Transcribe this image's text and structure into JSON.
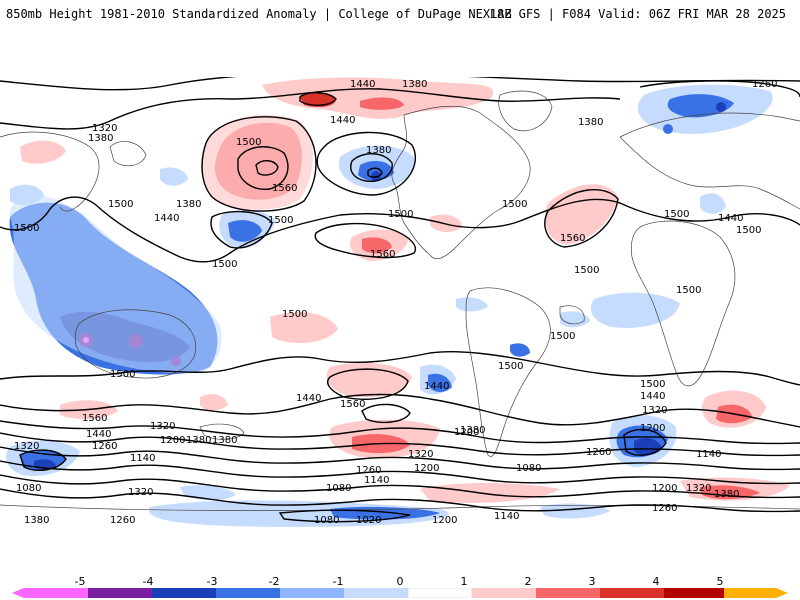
{
  "header": {
    "title_left": "850mb Height 1981-2010 Standardized Anomaly | College of DuPage NEXLAB",
    "title_right": "18Z GFS | F084 Valid: 06Z FRI MAR 28 2025"
  },
  "colors": {
    "neg5": "#ff66ff",
    "neg4": "#7a1fa2",
    "neg3": "#1b3fb8",
    "neg2": "#3a72e6",
    "neg1": "#c5dcff",
    "zero": "#ffffff",
    "pos1": "#ffcaca",
    "pos2": "#f7676a",
    "pos3": "#d9322a",
    "pos4": "#b50000",
    "pos5": "#ffb000"
  },
  "colorbar": {
    "ticks": [
      "-5",
      "-4",
      "-3",
      "-2",
      "-1",
      "0",
      "1",
      "2",
      "3",
      "4",
      "5"
    ]
  },
  "contour_labels": [
    "1380",
    "1440",
    "1260",
    "1320",
    "1380",
    "1380",
    "1500",
    "1560",
    "1440",
    "1380",
    "1500",
    "1500",
    "1500",
    "1500",
    "1440",
    "1380",
    "1500",
    "1560",
    "1500",
    "1500",
    "1440",
    "1500",
    "1560",
    "1500",
    "1500",
    "1500",
    "1440",
    "1500",
    "1500",
    "1500",
    "1560",
    "1440",
    "1320",
    "1200",
    "1380",
    "1140",
    "1560",
    "1440",
    "1320",
    "1260",
    "1200",
    "1380",
    "1500",
    "1440",
    "1320",
    "1200",
    "1140",
    "1080",
    "1260",
    "1320",
    "1200",
    "1080",
    "1260",
    "1320",
    "1380",
    "1140",
    "1020",
    "1080",
    "1200",
    "1140",
    "1200",
    "1380",
    "1260",
    "1260",
    "1080",
    "1380",
    "1320"
  ]
}
